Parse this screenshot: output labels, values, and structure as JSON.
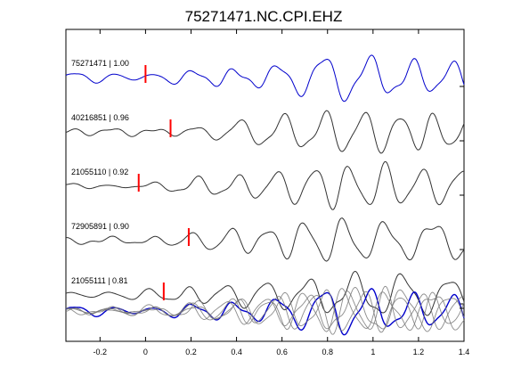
{
  "chart_data": {
    "type": "line",
    "title": "75271471.NC.CPI.EHZ",
    "xlabel": "",
    "ylabel": "",
    "xlim": [
      -0.35,
      1.4
    ],
    "xticks": [
      -0.2,
      0,
      0.2,
      0.4,
      0.6,
      0.8,
      1,
      1.2,
      1.4
    ],
    "xtick_labels": [
      "-0.2",
      "0",
      "0.2",
      "0.4",
      "0.6",
      "0.8",
      "1",
      "1.2",
      "1.4"
    ],
    "grid": false,
    "colors": {
      "reference": "#0000cc",
      "trace": "#333333",
      "pick": "#ff0000"
    },
    "series": [
      {
        "name": "75271471 | 1.00",
        "pick": 0.0,
        "seed": 1
      },
      {
        "name": "40216851 | 0.96",
        "pick": 0.11,
        "seed": 2
      },
      {
        "name": "21055110 | 0.92",
        "pick": -0.03,
        "seed": 3
      },
      {
        "name": "72905891 | 0.90",
        "pick": 0.19,
        "seed": 4
      },
      {
        "name": "21055111 | 0.81",
        "pick": 0.08,
        "seed": 5
      }
    ],
    "overlay": "stack of all traces"
  }
}
